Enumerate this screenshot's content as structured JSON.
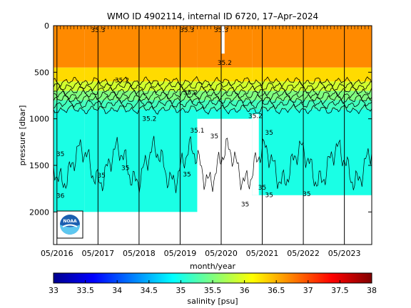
{
  "chart_data": {
    "type": "heatmap",
    "title": "WMO ID 4902114, internal ID 6720, 17–Apr–2024",
    "xlabel": "month/year",
    "ylabel": "pressure [dbar]",
    "x_ticks": [
      "05/2016",
      "05/2017",
      "05/2018",
      "05/2019",
      "05/2020",
      "05/2021",
      "05/2022",
      "05/2023"
    ],
    "x_range": [
      "04/2016",
      "01/2024"
    ],
    "y_ticks": [
      0,
      500,
      1000,
      1500,
      2000
    ],
    "ylim": [
      2350,
      0
    ],
    "y_reversed": true,
    "grid": false,
    "colorbar": {
      "label": "salinity [psu]",
      "ticks": [
        33,
        33.5,
        34,
        34.5,
        35,
        35.5,
        36,
        36.5,
        37,
        37.5,
        38
      ],
      "range": [
        33,
        38
      ],
      "colormap": "jet",
      "placement": "bottom"
    },
    "profile_depth_segments": [
      {
        "start": "04/2016",
        "end": "01/2017",
        "max_pressure": 2000
      },
      {
        "start": "01/2017",
        "end": "10/2019",
        "max_pressure": 2000
      },
      {
        "start": "10/2019",
        "end": "05/2020",
        "max_pressure": 1000
      },
      {
        "start": "05/2020",
        "end": "02/2021",
        "max_pressure": 1000
      },
      {
        "start": "02/2021",
        "end": "01/2024",
        "max_pressure": 1820
      }
    ],
    "gaps": [
      {
        "start": "02/2021",
        "end": "04/2021",
        "pressure_from": 950,
        "pressure_to": 1820
      },
      {
        "start": "05/2020",
        "end": "06/2020",
        "pressure_from": 0,
        "pressure_to": 300
      }
    ],
    "salinity_layers": [
      {
        "pressure_range": [
          0,
          450
        ],
        "salinity": 36.7
      },
      {
        "pressure_range": [
          450,
          600
        ],
        "salinity": 36.3
      },
      {
        "pressure_range": [
          600,
          700
        ],
        "salinity": 35.9
      },
      {
        "pressure_range": [
          700,
          800
        ],
        "salinity": 35.5
      },
      {
        "pressure_range": [
          800,
          900
        ],
        "salinity": 35.2
      },
      {
        "pressure_range": [
          900,
          2000
        ],
        "salinity": 35.0
      }
    ],
    "contour_levels": [
      35,
      35.2,
      35.4,
      35.6,
      35.8,
      36,
      36.2
    ],
    "contour_labels": [
      {
        "text": "35",
        "x": "06/2016",
        "p": 1400
      },
      {
        "text": "36",
        "x": "06/2016",
        "p": 1850
      },
      {
        "text": "35",
        "x": "06/2017",
        "p": 1630
      },
      {
        "text": "35",
        "x": "01/2018",
        "p": 1550
      },
      {
        "text": "35.2",
        "x": "12/2017",
        "p": 610
      },
      {
        "text": "35.2",
        "x": "08/2019",
        "p": 740
      },
      {
        "text": "35.1",
        "x": "10/2019",
        "p": 1150
      },
      {
        "text": "35",
        "x": "07/2019",
        "p": 1620
      },
      {
        "text": "35.2",
        "x": "08/2018",
        "p": 1020
      },
      {
        "text": "35",
        "x": "03/2020",
        "p": 1210
      },
      {
        "text": "35.2",
        "x": "06/2020",
        "p": 420
      },
      {
        "text": "35",
        "x": "12/2020",
        "p": 1940
      },
      {
        "text": "35.2",
        "x": "03/2021",
        "p": 990
      },
      {
        "text": "35",
        "x": "07/2021",
        "p": 1170
      },
      {
        "text": "35",
        "x": "05/2021",
        "p": 1760
      },
      {
        "text": "35",
        "x": "07/2021",
        "p": 1840
      },
      {
        "text": "35",
        "x": "06/2022",
        "p": 1830
      },
      {
        "text": "35.3",
        "x": "05/2017",
        "p": 70
      },
      {
        "text": "35.3",
        "x": "05/2020",
        "p": 70
      },
      {
        "text": "35.3",
        "x": "07/2019",
        "p": 70
      }
    ],
    "annotations": [
      "35.2",
      "35.3",
      "35.5",
      "35"
    ]
  },
  "colors": {
    "background": "#ffffff",
    "no_data": "#ffffff",
    "contour": "#000000",
    "profile_line": "#000000"
  },
  "logo": {
    "name": "noaa-logo-icon",
    "text": "NOAA"
  }
}
